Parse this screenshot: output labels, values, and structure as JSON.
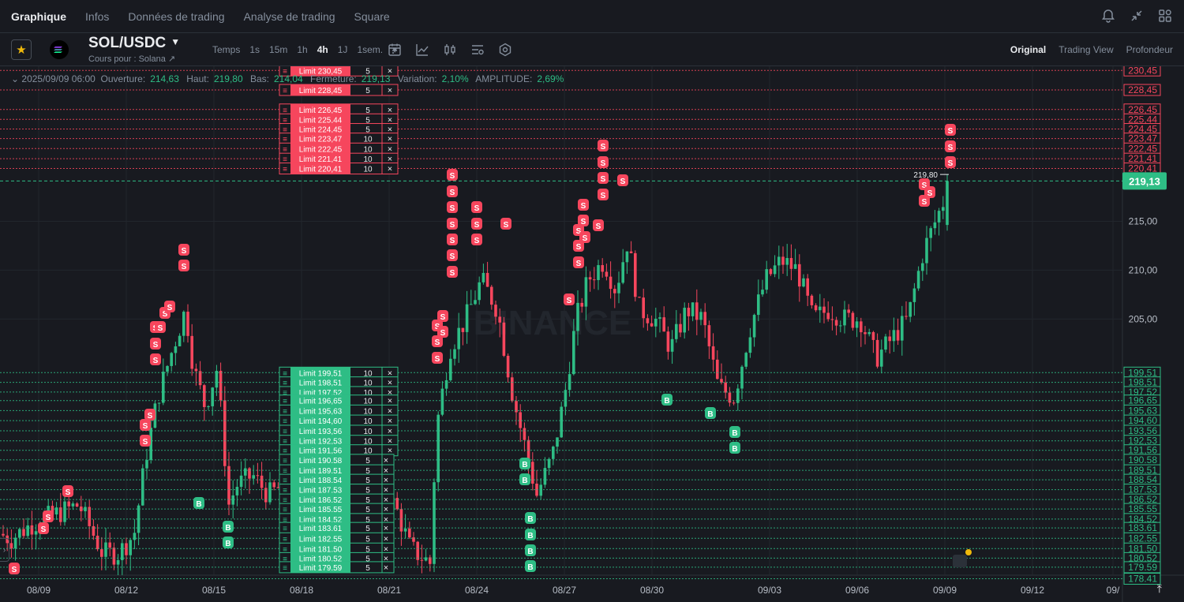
{
  "nav": {
    "tabs": [
      "Graphique",
      "Infos",
      "Données de trading",
      "Analyse de trading",
      "Square"
    ],
    "active": 0
  },
  "symbol": {
    "pair": "SOL/USDC",
    "subtitle": "Cours pour : Solana ↗"
  },
  "intervals": {
    "label": "Temps",
    "items": [
      "1s",
      "15m",
      "1h",
      "4h",
      "1J",
      "1sem."
    ],
    "active": "4h"
  },
  "views": {
    "items": [
      "Original",
      "Trading View",
      "Profondeur"
    ],
    "active": "Original"
  },
  "ohlc": {
    "date": "2025/09/09 06:00",
    "open_label": "Ouverture:",
    "open": "214,63",
    "high_label": "Haut:",
    "high": "219,80",
    "low_label": "Bas:",
    "low": "214,04",
    "close_label": "Fermeture:",
    "close": "219,13",
    "change_label": "Variation:",
    "change": "2,10%",
    "amp_label": "AMPLITUDE:",
    "amp": "2,69%"
  },
  "chart_data": {
    "type": "candlestick",
    "x_ticks": [
      "08/09",
      "08/12",
      "08/15",
      "08/18",
      "08/21",
      "08/24",
      "08/27",
      "08/30",
      "09/03",
      "09/06",
      "09/09",
      "09/12",
      "09/"
    ],
    "y_ticks": [
      "215,00",
      "210,00",
      "205,00"
    ],
    "current_price": "219,13",
    "high_marker": "219,80",
    "sell_orders": [
      {
        "price": "230,45",
        "qty": "5"
      },
      {
        "price": "228,45",
        "qty": "5"
      },
      {
        "price": "226,45",
        "qty": "5"
      },
      {
        "price": "225,44",
        "qty": "5"
      },
      {
        "price": "224,45",
        "qty": "5"
      },
      {
        "price": "223,47",
        "qty": "10"
      },
      {
        "price": "222,45",
        "qty": "10"
      },
      {
        "price": "221,41",
        "qty": "10"
      },
      {
        "price": "220,41",
        "qty": "10"
      }
    ],
    "buy_orders": [
      {
        "price": "199,51",
        "qty": "10"
      },
      {
        "price": "198,51",
        "qty": "10"
      },
      {
        "price": "197,52",
        "qty": "10"
      },
      {
        "price": "196,65",
        "qty": "10"
      },
      {
        "price": "195,63",
        "qty": "10"
      },
      {
        "price": "194,60",
        "qty": "10"
      },
      {
        "price": "193,56",
        "qty": "10"
      },
      {
        "price": "192,53",
        "qty": "10"
      },
      {
        "price": "191,56",
        "qty": "10"
      },
      {
        "price": "190.58",
        "qty": "5"
      },
      {
        "price": "189.51",
        "qty": "5"
      },
      {
        "price": "188.54",
        "qty": "5"
      },
      {
        "price": "187.53",
        "qty": "5"
      },
      {
        "price": "186.52",
        "qty": "5"
      },
      {
        "price": "185.55",
        "qty": "5"
      },
      {
        "price": "184.52",
        "qty": "5"
      },
      {
        "price": "183.61",
        "qty": "5"
      },
      {
        "price": "182.55",
        "qty": "5"
      },
      {
        "price": "181.50",
        "qty": "5"
      },
      {
        "price": "180.52",
        "qty": "5"
      },
      {
        "price": "179.59",
        "qty": "5"
      },
      {
        "price": "178.41",
        "qty": "5"
      }
    ],
    "order_prefix": "Limit",
    "colors": {
      "up": "#2ebd85",
      "down": "#f6465d",
      "bg": "#181a20",
      "grid": "#22262d"
    }
  }
}
